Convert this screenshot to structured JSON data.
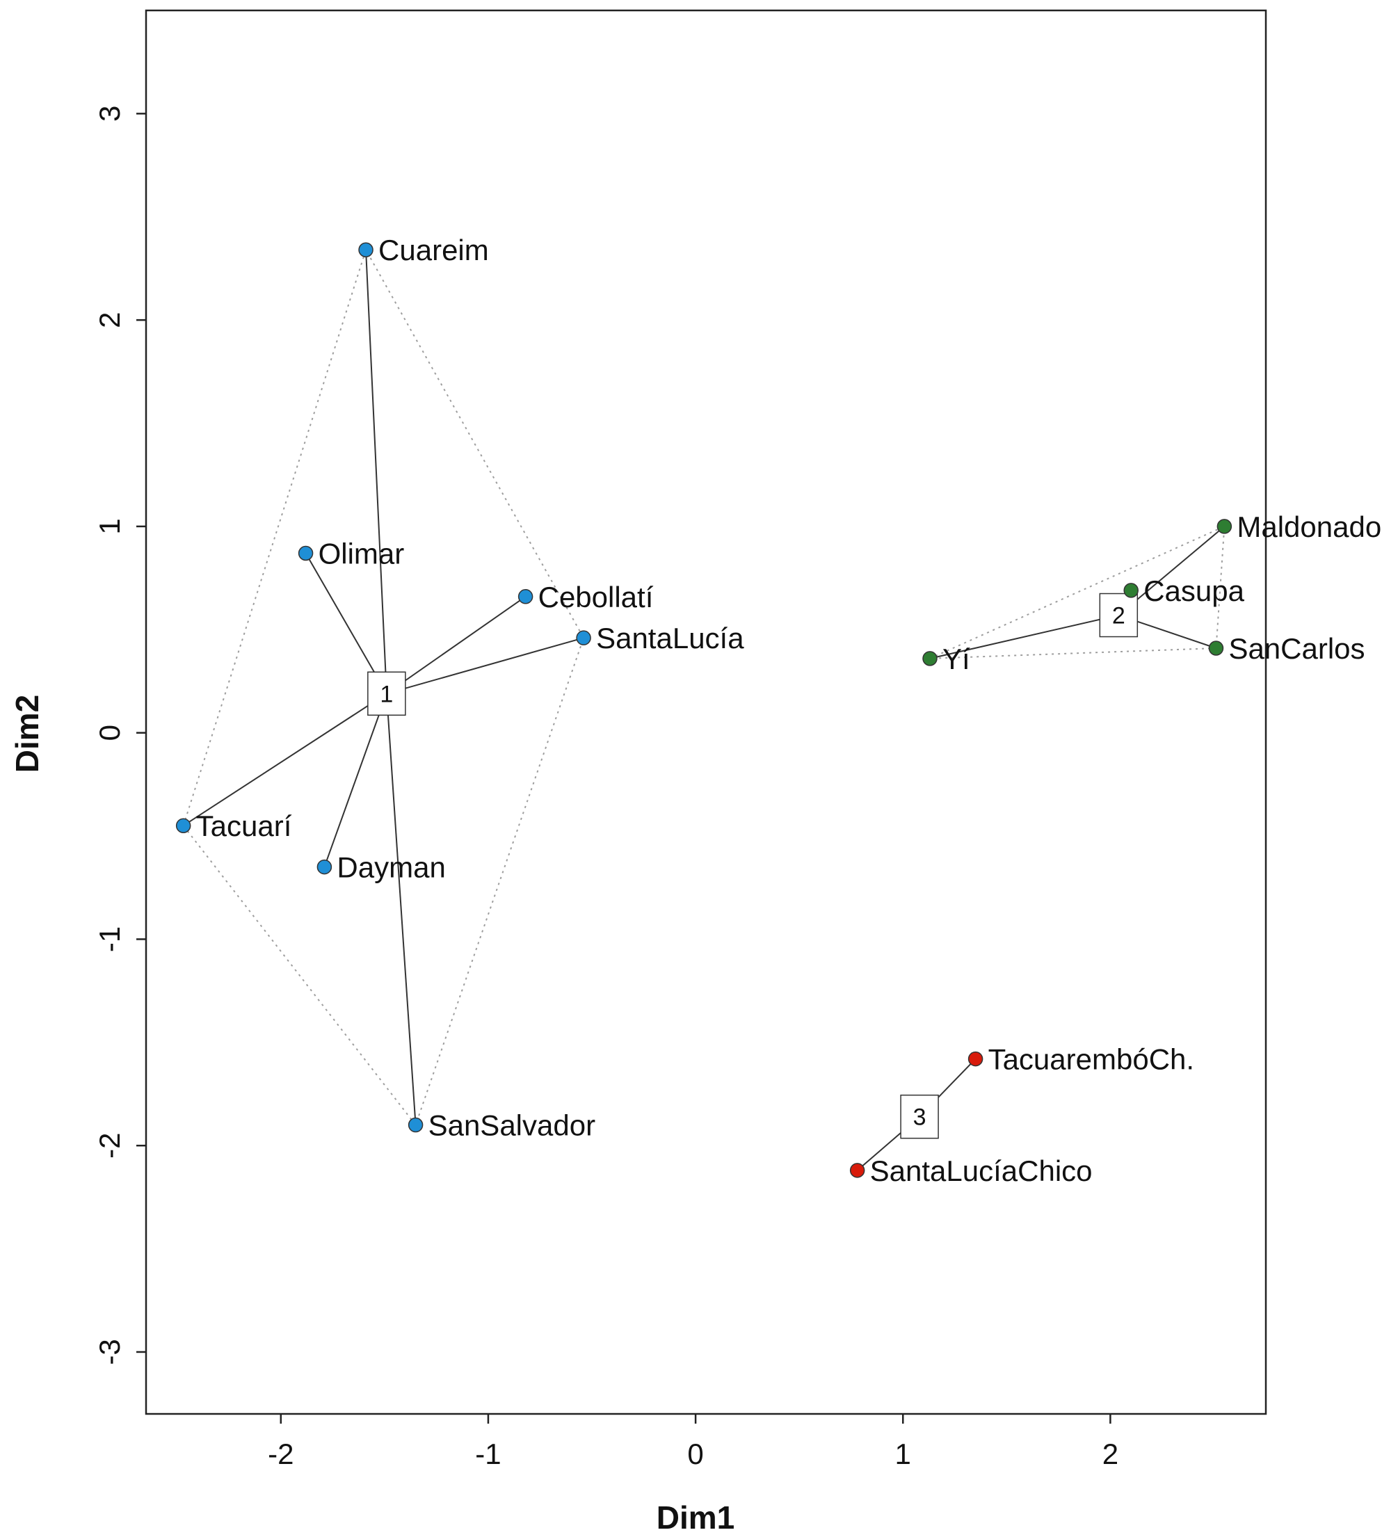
{
  "chart_data": {
    "type": "scatter",
    "title": "",
    "xlabel": "Dim1",
    "ylabel": "Dim2",
    "xlim": [
      -2.65,
      2.75
    ],
    "ylim": [
      -3.3,
      3.5
    ],
    "xticks": [
      -2,
      -1,
      0,
      1,
      2
    ],
    "yticks": [
      -3,
      -2,
      -1,
      0,
      1,
      2,
      3
    ],
    "colors": {
      "cluster1": "#1f8fd6",
      "cluster2": "#2e7d32",
      "cluster3": "#d81b0b",
      "segment": "#333333",
      "hull": "#9e9e9e"
    },
    "clusters": [
      {
        "id": "1",
        "center": {
          "label": "1",
          "x": -1.49,
          "y": 0.19
        },
        "color_key": "cluster1",
        "points": [
          {
            "name": "Cuareim",
            "x": -1.59,
            "y": 2.34
          },
          {
            "name": "Olimar",
            "x": -1.88,
            "y": 0.87
          },
          {
            "name": "Cebollatí",
            "x": -0.82,
            "y": 0.66
          },
          {
            "name": "SantaLucía",
            "x": -0.54,
            "y": 0.46
          },
          {
            "name": "Tacuarí",
            "x": -2.47,
            "y": -0.45
          },
          {
            "name": "Dayman",
            "x": -1.79,
            "y": -0.65
          },
          {
            "name": "SanSalvador",
            "x": -1.35,
            "y": -1.9
          }
        ]
      },
      {
        "id": "2",
        "center": {
          "label": "2",
          "x": 2.04,
          "y": 0.57
        },
        "color_key": "cluster2",
        "points": [
          {
            "name": "Maldonado",
            "x": 2.55,
            "y": 1.0
          },
          {
            "name": "Casupa",
            "x": 2.1,
            "y": 0.69
          },
          {
            "name": "SanCarlos",
            "x": 2.51,
            "y": 0.41
          },
          {
            "name": "Yí",
            "x": 1.13,
            "y": 0.36
          }
        ]
      },
      {
        "id": "3",
        "center": {
          "label": "3",
          "x": 1.08,
          "y": -1.86
        },
        "color_key": "cluster3",
        "points": [
          {
            "name": "TacuarembóCh.",
            "x": 1.35,
            "y": -1.58
          },
          {
            "name": "SantaLucíaChico",
            "x": 0.78,
            "y": -2.12
          }
        ]
      }
    ]
  }
}
